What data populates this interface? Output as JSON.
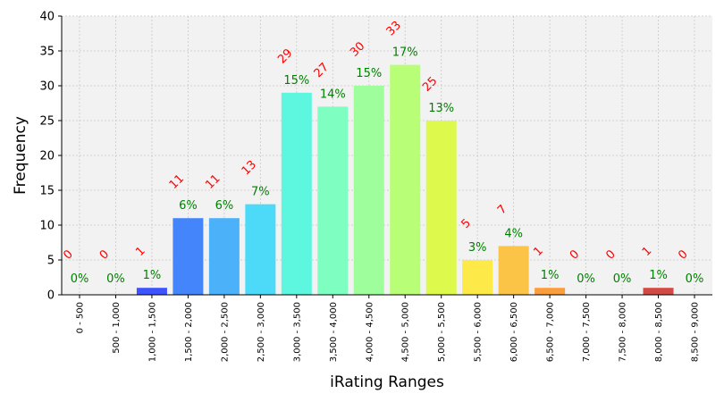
{
  "chart_data": {
    "type": "bar",
    "xlabel": "iRating Ranges",
    "ylabel": "Frequency",
    "ylim": [
      0,
      40
    ],
    "yticks": [
      0,
      5,
      10,
      15,
      20,
      25,
      30,
      35,
      40
    ],
    "grid": true,
    "categories": [
      "0 - 500",
      "500 - 1,000",
      "1,000 - 1,500",
      "1,500 - 2,000",
      "2,000 - 2,500",
      "2,500 - 3,000",
      "3,000 - 3,500",
      "3,500 - 4,000",
      "4,000 - 4,500",
      "4,500 - 5,000",
      "5,000 - 5,500",
      "5,500 - 6,000",
      "6,000 - 6,500",
      "6,500 - 7,000",
      "7,000 - 7,500",
      "7,500 - 8,000",
      "8,000 - 8,500",
      "8,500 - 9,000"
    ],
    "values": [
      0,
      0,
      1,
      11,
      11,
      13,
      29,
      27,
      30,
      33,
      25,
      5,
      7,
      1,
      0,
      0,
      1,
      0
    ],
    "percent_labels": [
      "0%",
      "0%",
      "1%",
      "6%",
      "6%",
      "7%",
      "15%",
      "14%",
      "15%",
      "17%",
      "13%",
      "3%",
      "4%",
      "1%",
      "0%",
      "0%",
      "1%",
      "0%"
    ],
    "colors": [
      "#3a1ff8",
      "#3431fc",
      "#3c53ff",
      "#4585fc",
      "#4bb2f9",
      "#4ddaf8",
      "#5df7e0",
      "#7effc1",
      "#9dfe9b",
      "#b8fe77",
      "#dcf94c",
      "#fde947",
      "#fbc447",
      "#fb9d3c",
      "#f06a2f",
      "#e0402a",
      "#d14a45",
      "#c1292a"
    ]
  }
}
